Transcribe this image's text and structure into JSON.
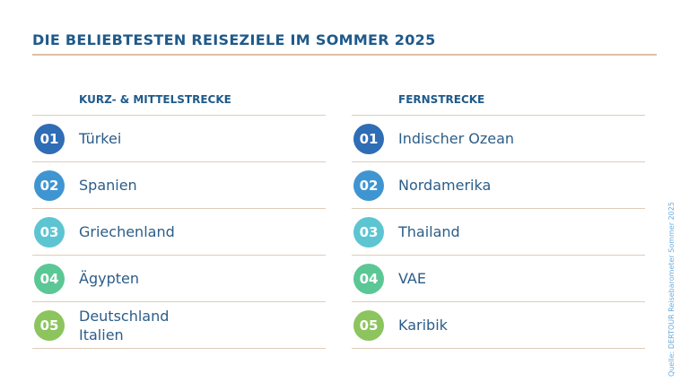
{
  "title": "DIE BELIEBTESTEN REISEZIELE IM SOMMER 2025",
  "source": "Quelle: DERTOUR Reisebarometer Sommer 2025",
  "rank_colors": [
    "#2f6db5",
    "#3f95d2",
    "#5dc5d1",
    "#5bc795",
    "#8cc45e"
  ],
  "columns": [
    {
      "heading": "KURZ- & MITTELSTRECKE",
      "items": [
        {
          "rank": "01",
          "lines": [
            "Türkei"
          ]
        },
        {
          "rank": "02",
          "lines": [
            "Spanien"
          ]
        },
        {
          "rank": "03",
          "lines": [
            "Griechenland"
          ]
        },
        {
          "rank": "04",
          "lines": [
            "Ägypten"
          ]
        },
        {
          "rank": "05",
          "lines": [
            "Deutschland",
            "Italien"
          ]
        }
      ]
    },
    {
      "heading": "FERNSTRECKE",
      "items": [
        {
          "rank": "01",
          "lines": [
            "Indischer Ozean"
          ]
        },
        {
          "rank": "02",
          "lines": [
            "Nordamerika"
          ]
        },
        {
          "rank": "03",
          "lines": [
            "Thailand"
          ]
        },
        {
          "rank": "04",
          "lines": [
            "VAE"
          ]
        },
        {
          "rank": "05",
          "lines": [
            "Karibik"
          ]
        }
      ]
    }
  ]
}
